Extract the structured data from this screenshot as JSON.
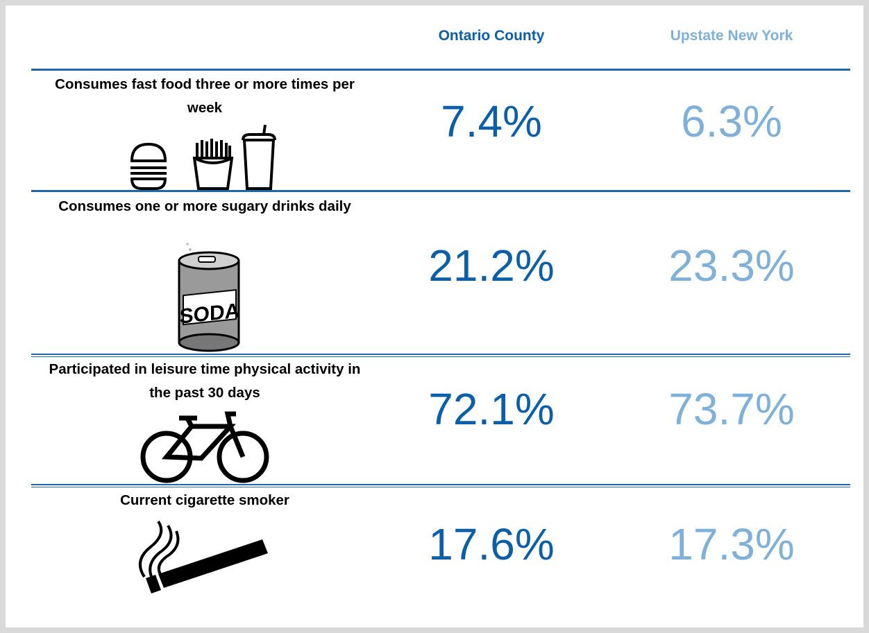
{
  "header": {
    "columns": [
      "Ontario County",
      "Upstate New York"
    ]
  },
  "rows": [
    {
      "label": "Consumes fast food three or more times per week",
      "values": [
        "7.4%",
        "6.3%"
      ]
    },
    {
      "label": "Consumes one or more sugary drinks daily",
      "values": [
        "21.2%",
        "23.3%"
      ]
    },
    {
      "label": "Participated in leisure time physical activity in the past 30 days",
      "values": [
        "72.1%",
        "73.7%"
      ]
    },
    {
      "label": "Current cigarette smoker",
      "values": [
        "17.6%",
        "17.3%"
      ]
    }
  ]
}
